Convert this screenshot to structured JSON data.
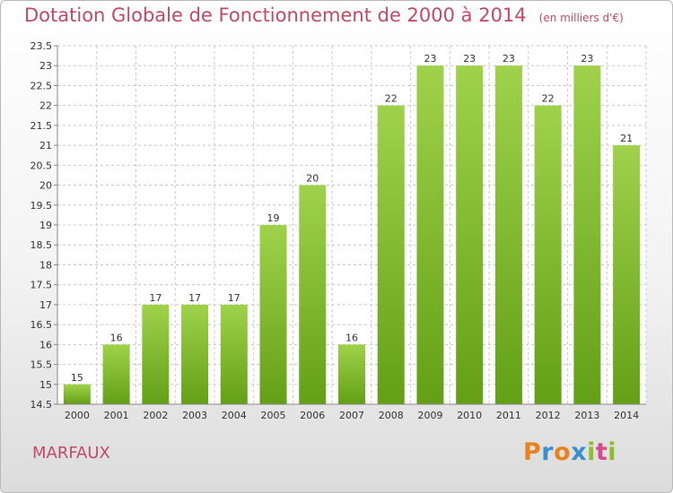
{
  "title": "Dotation Globale de Fonctionnement de 2000 à 2014",
  "unit": "(en milliers d'€)",
  "commune": "MARFAUX",
  "logo": {
    "letters": [
      "P",
      "r",
      "o",
      "x",
      "i",
      "t",
      "i"
    ],
    "colors": [
      "#e8821e",
      "#3a8fd0",
      "#e8821e",
      "#3a8fd0",
      "#8cbf2a",
      "#d64a8a",
      "#8cbf2a"
    ]
  },
  "colors": {
    "bar_top": "#9fd24a",
    "bar_bottom": "#63a016",
    "title": "#c24a63",
    "grid": "#c8c8c8"
  },
  "chart_data": {
    "type": "bar",
    "categories": [
      "2000",
      "2001",
      "2002",
      "2003",
      "2004",
      "2005",
      "2006",
      "2007",
      "2008",
      "2009",
      "2010",
      "2011",
      "2012",
      "2013",
      "2014"
    ],
    "values": [
      15,
      16,
      17,
      17,
      17,
      19,
      20,
      16,
      22,
      23,
      23,
      23,
      22,
      23,
      21
    ],
    "data_labels": [
      "15",
      "16",
      "17",
      "17",
      "17",
      "19",
      "20",
      "16",
      "22",
      "23",
      "23",
      "23",
      "22",
      "23",
      "21"
    ],
    "yticks": [
      "14.5",
      "15",
      "15.5",
      "16",
      "16.5",
      "17",
      "17.5",
      "18",
      "18.5",
      "19",
      "19.5",
      "20",
      "20.5",
      "21",
      "21.5",
      "22",
      "22.5",
      "23",
      "23.5"
    ],
    "ylim": [
      14.5,
      23.5
    ],
    "grid": true,
    "legend": "none"
  }
}
